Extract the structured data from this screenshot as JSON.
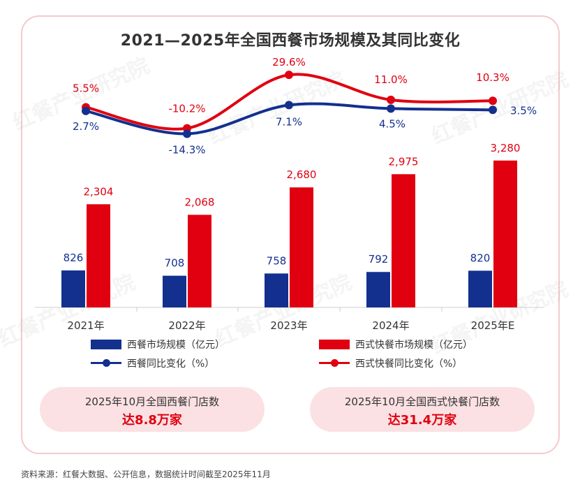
{
  "title": "2021—2025年全国西餐市场规模及其同比变化",
  "chart_data": {
    "type": "bar",
    "categories": [
      "2021年",
      "2022年",
      "2023年",
      "2024年",
      "2025年E"
    ],
    "series": [
      {
        "name": "西餐市场规模（亿元）",
        "type": "bar",
        "color": "#13308f",
        "values": [
          826,
          708,
          758,
          792,
          820
        ],
        "labels": [
          "826",
          "708",
          "758",
          "792",
          "820"
        ]
      },
      {
        "name": "西式快餐市场规模（亿元）",
        "type": "bar",
        "color": "#e00010",
        "values": [
          2304,
          2068,
          2680,
          2975,
          3280
        ],
        "labels": [
          "2,304",
          "2,068",
          "2,680",
          "2,975",
          "3,280"
        ]
      },
      {
        "name": "西餐同比变化（%）",
        "type": "line",
        "color": "#13308f",
        "values": [
          2.7,
          -14.3,
          7.1,
          4.5,
          3.5
        ],
        "labels": [
          "2.7%",
          "-14.3%",
          "7.1%",
          "4.5%",
          "3.5%"
        ]
      },
      {
        "name": "西式快餐同比变化（%）",
        "type": "line",
        "color": "#e00010",
        "values": [
          5.5,
          -10.2,
          29.6,
          11.0,
          10.3
        ],
        "labels": [
          "5.5%",
          "-10.2%",
          "29.6%",
          "11.0%",
          "10.3%"
        ]
      }
    ],
    "legend": "bottom",
    "grid": false
  },
  "legend": {
    "bar_blue": "西餐市场规模（亿元）",
    "bar_red": "西式快餐市场规模（亿元）",
    "line_blue": "西餐同比变化（%）",
    "line_red": "西式快餐同比变化（%）"
  },
  "callouts": {
    "western": {
      "label": "2025年10月全国西餐门店数",
      "value": "达8.8万家"
    },
    "fastfood": {
      "label": "2025年10月全国西式快餐门店数",
      "value": "达31.4万家"
    }
  },
  "source": "资料来源：红餐大数据、公开信息，数据统计时间截至2025年11月",
  "watermark": "红餐产业研究院"
}
